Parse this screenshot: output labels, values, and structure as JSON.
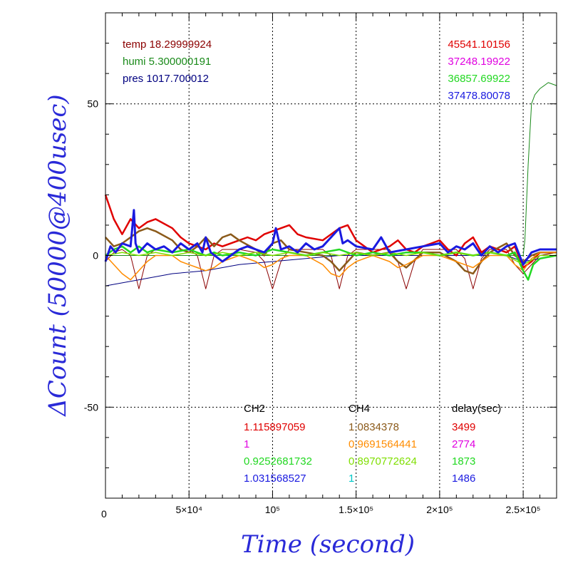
{
  "chart_data": {
    "type": "line",
    "xlabel": "Time (second)",
    "ylabel": "ΔCount (50000@400usec)",
    "xlim": [
      0,
      270000
    ],
    "ylim": [
      -80,
      80
    ],
    "x_ticks": [
      {
        "value": 0,
        "label": "0"
      },
      {
        "value": 50000,
        "label": "5×10⁴"
      },
      {
        "value": 100000,
        "label": "10⁵"
      },
      {
        "value": 150000,
        "label": "1.5×10⁵"
      },
      {
        "value": 200000,
        "label": "2×10⁵"
      },
      {
        "value": 250000,
        "label": "2.5×10⁵"
      }
    ],
    "y_ticks": [
      {
        "value": 50,
        "label": "50"
      },
      {
        "value": 0,
        "label": "0"
      },
      {
        "value": -50,
        "label": "-50"
      }
    ],
    "grid": true,
    "env_legend": [
      {
        "label": "temp 18.29999924",
        "color": "#8b0000"
      },
      {
        "label": "humi 5.300000191",
        "color": "#1a8a1a"
      },
      {
        "label": "pres 1017.700012",
        "color": "#000080"
      }
    ],
    "count_legend": [
      {
        "label": "45541.10156",
        "color": "#e00000"
      },
      {
        "label": "37248.19922",
        "color": "#e000e0"
      },
      {
        "label": "36857.69922",
        "color": "#22d822"
      },
      {
        "label": "37478.80078",
        "color": "#1a1ae0"
      }
    ],
    "table": {
      "headers": [
        "CH2",
        "CH4",
        "delay(sec)"
      ],
      "rows": [
        {
          "ch2": "1.115897059",
          "ch2_color": "#e00000",
          "ch4": "1.0834378",
          "ch4_color": "#8b5a1a",
          "delay": "3499",
          "delay_color": "#e00000"
        },
        {
          "ch2": "1",
          "ch2_color": "#e000e0",
          "ch4": "0.9691564441",
          "ch4_color": "#ff8c00",
          "delay": "2774",
          "delay_color": "#e000e0"
        },
        {
          "ch2": "0.9252681732",
          "ch2_color": "#22d822",
          "ch4": "0.8970772624",
          "ch4_color": "#7fdf00",
          "delay": "1873",
          "delay_color": "#22d822"
        },
        {
          "ch2": "1.031568527",
          "ch2_color": "#1a1ae0",
          "ch4": "1",
          "ch4_color": "#00c8c8",
          "delay": "1486",
          "delay_color": "#1a1ae0"
        }
      ]
    },
    "series": [
      {
        "name": "temp",
        "color": "#8b0000",
        "width": 1,
        "x": [
          0,
          5000,
          10000,
          15000,
          20000,
          25000,
          30000,
          40000,
          50000,
          55000,
          60000,
          65000,
          70000,
          80000,
          90000,
          95000,
          100000,
          105000,
          110000,
          120000,
          130000,
          135000,
          140000,
          145000,
          150000,
          160000,
          170000,
          175000,
          180000,
          185000,
          190000,
          200000,
          210000,
          215000,
          220000,
          225000,
          230000,
          240000,
          245000,
          250000,
          260000,
          270000
        ],
        "y": [
          -2,
          1,
          2,
          0,
          -11,
          0,
          2,
          1,
          2,
          0,
          -11,
          0,
          2,
          2,
          1,
          -2,
          -11,
          -2,
          2,
          2,
          2,
          0,
          -11,
          0,
          2,
          2,
          2,
          -2,
          -11,
          -2,
          2,
          2,
          2,
          -1,
          -11,
          -1,
          2,
          2,
          -3,
          -6,
          0,
          1
        ]
      },
      {
        "name": "humi",
        "color": "#1a8a1a",
        "width": 1,
        "x": [
          0,
          10000,
          50000,
          100000,
          150000,
          200000,
          240000,
          250000,
          251000,
          253000,
          255000,
          257000,
          260000,
          265000,
          270000
        ],
        "y": [
          0,
          0,
          0,
          0,
          0,
          0,
          0,
          0,
          5,
          30,
          50,
          53,
          55,
          57,
          56
        ]
      },
      {
        "name": "pres",
        "color": "#000080",
        "width": 1,
        "x": [
          0,
          20000,
          40000,
          60000,
          80000,
          100000,
          120000,
          140000,
          160000,
          180000,
          200000,
          220000,
          240000,
          250000,
          260000,
          270000
        ],
        "y": [
          -10,
          -8,
          -6,
          -5,
          -3,
          -2,
          -1,
          0,
          0,
          0,
          0,
          0,
          0,
          -2,
          -1,
          0
        ]
      },
      {
        "name": "CH2 red",
        "color": "#e00000",
        "width": 2.5,
        "x": [
          0,
          5000,
          10000,
          15000,
          20000,
          25000,
          30000,
          40000,
          45000,
          50000,
          55000,
          60000,
          65000,
          70000,
          80000,
          85000,
          90000,
          95000,
          100000,
          105000,
          110000,
          115000,
          120000,
          130000,
          135000,
          140000,
          145000,
          150000,
          160000,
          165000,
          170000,
          175000,
          180000,
          185000,
          190000,
          195000,
          200000,
          205000,
          210000,
          215000,
          220000,
          225000,
          230000,
          240000,
          245000,
          250000,
          255000,
          260000,
          270000
        ],
        "y": [
          20,
          12,
          7,
          12,
          9,
          11,
          12,
          9,
          6,
          4,
          3,
          2,
          4,
          3,
          5,
          6,
          5,
          7,
          8,
          9,
          10,
          7,
          6,
          5,
          7,
          9,
          10,
          5,
          1,
          2,
          3,
          5,
          2,
          1,
          3,
          4,
          5,
          2,
          0,
          4,
          6,
          1,
          3,
          1,
          3,
          -4,
          -2,
          1,
          1
        ]
      },
      {
        "name": "CH4 brown",
        "color": "#8b5a1a",
        "width": 2.5,
        "x": [
          0,
          5000,
          10000,
          15000,
          20000,
          25000,
          30000,
          40000,
          45000,
          50000,
          55000,
          60000,
          65000,
          70000,
          75000,
          80000,
          90000,
          95000,
          100000,
          105000,
          110000,
          120000,
          130000,
          135000,
          140000,
          145000,
          150000,
          160000,
          170000,
          175000,
          180000,
          190000,
          200000,
          210000,
          215000,
          220000,
          225000,
          230000,
          240000,
          245000,
          250000,
          255000,
          260000,
          270000
        ],
        "y": [
          6,
          3,
          4,
          6,
          8,
          9,
          8,
          5,
          2,
          1,
          3,
          6,
          3,
          6,
          7,
          5,
          2,
          0,
          4,
          5,
          2,
          1,
          0,
          -2,
          -5,
          -2,
          1,
          0,
          1,
          -2,
          -4,
          1,
          1,
          -2,
          -5,
          -6,
          -2,
          1,
          4,
          0,
          -2,
          0,
          1,
          1
        ]
      },
      {
        "name": "CH4 orange",
        "color": "#ff8c00",
        "width": 1.5,
        "x": [
          0,
          5000,
          10000,
          15000,
          20000,
          25000,
          30000,
          40000,
          45000,
          50000,
          55000,
          60000,
          65000,
          70000,
          80000,
          90000,
          95000,
          100000,
          105000,
          110000,
          120000,
          130000,
          135000,
          140000,
          145000,
          150000,
          160000,
          170000,
          175000,
          180000,
          190000,
          200000,
          210000,
          215000,
          220000,
          225000,
          230000,
          240000,
          245000,
          250000,
          255000,
          260000,
          270000
        ],
        "y": [
          0,
          -3,
          -6,
          -8,
          -5,
          -2,
          0,
          0,
          -2,
          -3,
          -4,
          -5,
          -4,
          -2,
          0,
          -2,
          -4,
          -3,
          -1,
          0,
          0,
          -3,
          -6,
          -7,
          -4,
          -2,
          0,
          -2,
          -4,
          -3,
          0,
          0,
          -2,
          -3,
          -4,
          -2,
          0,
          0,
          -3,
          -5,
          -1,
          1,
          1
        ]
      },
      {
        "name": "CH2 green",
        "color": "#22d822",
        "width": 2.5,
        "x": [
          0,
          5000,
          10000,
          15000,
          20000,
          25000,
          30000,
          40000,
          50000,
          60000,
          65000,
          70000,
          80000,
          90000,
          100000,
          110000,
          120000,
          130000,
          140000,
          150000,
          160000,
          170000,
          180000,
          190000,
          200000,
          210000,
          220000,
          230000,
          240000,
          245000,
          250000,
          253000,
          256000,
          260000,
          270000
        ],
        "y": [
          0,
          2,
          3,
          1,
          3,
          1,
          2,
          1,
          2,
          0,
          1,
          0,
          1,
          0,
          2,
          1,
          0,
          1,
          2,
          0,
          1,
          0,
          1,
          1,
          0,
          1,
          0,
          1,
          0,
          1,
          -5,
          -8,
          -3,
          -1,
          0
        ]
      },
      {
        "name": "CH4 lime",
        "color": "#7fdf00",
        "width": 1.5,
        "x": [
          0,
          10000,
          20000,
          30000,
          40000,
          50000,
          60000,
          70000,
          80000,
          90000,
          100000,
          110000,
          120000,
          130000,
          140000,
          150000,
          160000,
          170000,
          180000,
          190000,
          200000,
          210000,
          220000,
          230000,
          240000,
          250000,
          260000,
          270000
        ],
        "y": [
          0,
          1,
          0,
          1,
          0,
          1,
          0,
          1,
          0,
          1,
          0,
          1,
          0,
          1,
          0,
          1,
          0,
          1,
          0,
          1,
          0,
          1,
          0,
          1,
          0,
          -3,
          0,
          0
        ]
      },
      {
        "name": "CH2 blue",
        "color": "#1a1ae0",
        "width": 3,
        "x": [
          0,
          3000,
          6000,
          10000,
          15000,
          17000,
          18000,
          20000,
          25000,
          30000,
          35000,
          40000,
          45000,
          50000,
          55000,
          58000,
          60000,
          63000,
          70000,
          75000,
          80000,
          85000,
          90000,
          95000,
          100000,
          102000,
          105000,
          110000,
          115000,
          120000,
          125000,
          130000,
          135000,
          140000,
          142000,
          145000,
          150000,
          160000,
          165000,
          170000,
          180000,
          190000,
          200000,
          205000,
          210000,
          215000,
          220000,
          225000,
          230000,
          235000,
          240000,
          245000,
          250000,
          255000,
          260000,
          270000
        ],
        "y": [
          -2,
          3,
          1,
          4,
          3,
          15,
          4,
          1,
          4,
          2,
          3,
          1,
          4,
          2,
          4,
          1,
          6,
          1,
          -2,
          0,
          2,
          3,
          2,
          1,
          4,
          9,
          2,
          3,
          1,
          4,
          2,
          3,
          6,
          9,
          4,
          5,
          3,
          2,
          6,
          1,
          2,
          3,
          4,
          1,
          3,
          2,
          4,
          0,
          3,
          1,
          3,
          4,
          -3,
          1,
          2,
          2
        ]
      }
    ]
  }
}
